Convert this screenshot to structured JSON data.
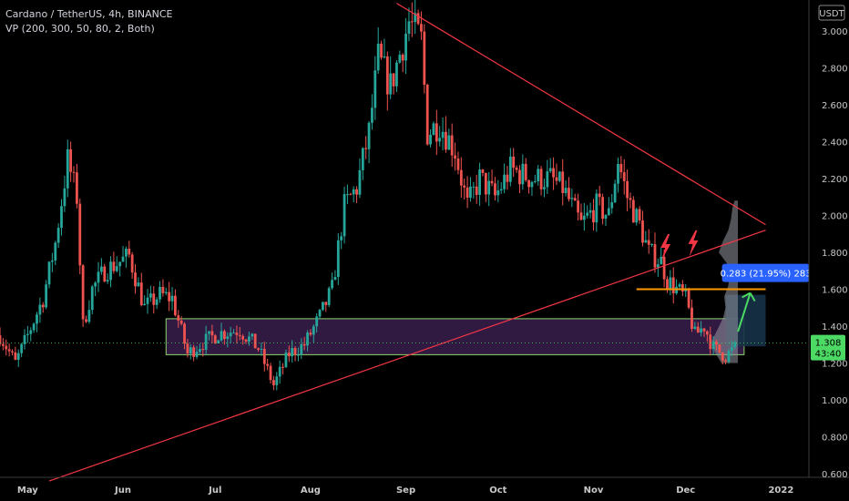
{
  "header": {
    "symbol_line": "Cardano / TetherUS, 4h, BINANCE",
    "indicator_line": "VP (200, 300, 50, 80, 2, Both)"
  },
  "currency_badge": "USDT",
  "colors": {
    "up": "#26a69a",
    "down": "#ef5350",
    "trendline": "#f23645",
    "zone_fill": "#3a1e4e",
    "zone_border": "#8bd46a",
    "orange_line": "#ff9800",
    "measure_box": "#163247",
    "measure_label": "#2962ff",
    "arrow": "#4cd964",
    "price_badge": "#4cd964",
    "volume_profile": "#9598a1"
  },
  "icons": [
    "lightning-bolt-icon",
    "lightning-bolt-icon"
  ],
  "chart_data": {
    "type": "candlestick",
    "timeframe": "4h",
    "title": "Cardano / TetherUS, 4h, BINANCE",
    "y_axis": {
      "unit": "USDT",
      "ticks": [
        "3.000",
        "2.800",
        "2.600",
        "2.400",
        "2.200",
        "2.000",
        "1.800",
        "1.600",
        "1.400",
        "1.200",
        "1.000",
        "0.800",
        "0.600"
      ],
      "range": [
        0.6,
        3.1
      ]
    },
    "x_axis": {
      "ticks": [
        "May",
        "Jun",
        "Jul",
        "Aug",
        "Sep",
        "Oct",
        "Nov",
        "Dec",
        "2022"
      ],
      "range": [
        "2021-04-22",
        "2021-12-31"
      ]
    },
    "current_price": "1.308",
    "countdown": "43:40",
    "price_path": [
      {
        "t": "2021-04-22",
        "p": 1.35
      },
      {
        "t": "2021-04-27",
        "p": 1.2
      },
      {
        "t": "2021-05-01",
        "p": 1.35
      },
      {
        "t": "2021-05-06",
        "p": 1.55
      },
      {
        "t": "2021-05-10",
        "p": 1.85
      },
      {
        "t": "2021-05-14",
        "p": 2.3
      },
      {
        "t": "2021-05-17",
        "p": 2.1
      },
      {
        "t": "2021-05-19",
        "p": 1.4
      },
      {
        "t": "2021-05-22",
        "p": 1.6
      },
      {
        "t": "2021-05-26",
        "p": 1.7
      },
      {
        "t": "2021-05-31",
        "p": 1.75
      },
      {
        "t": "2021-06-03",
        "p": 1.78
      },
      {
        "t": "2021-06-08",
        "p": 1.5
      },
      {
        "t": "2021-06-13",
        "p": 1.57
      },
      {
        "t": "2021-06-17",
        "p": 1.55
      },
      {
        "t": "2021-06-22",
        "p": 1.25
      },
      {
        "t": "2021-06-26",
        "p": 1.3
      },
      {
        "t": "2021-07-02",
        "p": 1.36
      },
      {
        "t": "2021-07-09",
        "p": 1.38
      },
      {
        "t": "2021-07-15",
        "p": 1.28
      },
      {
        "t": "2021-07-20",
        "p": 1.08
      },
      {
        "t": "2021-07-25",
        "p": 1.25
      },
      {
        "t": "2021-07-30",
        "p": 1.3
      },
      {
        "t": "2021-08-04",
        "p": 1.45
      },
      {
        "t": "2021-08-08",
        "p": 1.6
      },
      {
        "t": "2021-08-12",
        "p": 2.05
      },
      {
        "t": "2021-08-16",
        "p": 2.15
      },
      {
        "t": "2021-08-20",
        "p": 2.45
      },
      {
        "t": "2021-08-23",
        "p": 2.85
      },
      {
        "t": "2021-08-27",
        "p": 2.7
      },
      {
        "t": "2021-09-02",
        "p": 3.05
      },
      {
        "t": "2021-09-06",
        "p": 2.95
      },
      {
        "t": "2021-09-08",
        "p": 2.45
      },
      {
        "t": "2021-09-12",
        "p": 2.5
      },
      {
        "t": "2021-09-17",
        "p": 2.35
      },
      {
        "t": "2021-09-21",
        "p": 2.05
      },
      {
        "t": "2021-09-25",
        "p": 2.2
      },
      {
        "t": "2021-09-30",
        "p": 2.1
      },
      {
        "t": "2021-10-05",
        "p": 2.25
      },
      {
        "t": "2021-10-12",
        "p": 2.2
      },
      {
        "t": "2021-10-18",
        "p": 2.2
      },
      {
        "t": "2021-10-22",
        "p": 2.15
      },
      {
        "t": "2021-10-28",
        "p": 1.95
      },
      {
        "t": "2021-11-02",
        "p": 2.05
      },
      {
        "t": "2021-11-06",
        "p": 2.0
      },
      {
        "t": "2021-11-09",
        "p": 2.3
      },
      {
        "t": "2021-11-12",
        "p": 2.1
      },
      {
        "t": "2021-11-16",
        "p": 1.95
      },
      {
        "t": "2021-11-19",
        "p": 1.8
      },
      {
        "t": "2021-11-23",
        "p": 1.75
      },
      {
        "t": "2021-11-25",
        "p": 1.65
      },
      {
        "t": "2021-11-28",
        "p": 1.6
      },
      {
        "t": "2021-12-01",
        "p": 1.55
      },
      {
        "t": "2021-12-04",
        "p": 1.35
      },
      {
        "t": "2021-12-07",
        "p": 1.4
      },
      {
        "t": "2021-12-10",
        "p": 1.28
      },
      {
        "t": "2021-12-14",
        "p": 1.24
      },
      {
        "t": "2021-12-17",
        "p": 1.28
      }
    ],
    "drawings": {
      "upper_trendline": [
        {
          "t": "2021-08-29",
          "p": 3.15
        },
        {
          "t": "2021-12-27",
          "p": 1.95
        }
      ],
      "lower_trendline": [
        {
          "t": "2021-05-08",
          "p": 0.56
        },
        {
          "t": "2021-12-27",
          "p": 1.92
        }
      ],
      "support_zone": {
        "t0": "2021-06-15",
        "t1": "2021-12-20",
        "p_low": 1.245,
        "p_high": 1.44
      },
      "orange_level": {
        "t0": "2021-11-15",
        "t1": "2021-12-27",
        "p": 1.6
      },
      "measure_box": {
        "t0": "2021-12-14",
        "t1": "2021-12-27",
        "p_low": 1.29,
        "p_high": 1.57
      },
      "measure_label": "0.283 (21.95%) 283",
      "projection_arrow": [
        {
          "t": "2021-12-18",
          "p": 1.37
        },
        {
          "t": "2021-12-22",
          "p": 1.58
        }
      ],
      "lightning_marks": [
        {
          "t": "2021-11-24",
          "p": 1.82
        },
        {
          "t": "2021-12-03",
          "p": 1.84
        }
      ]
    },
    "volume_profile": {
      "y_range": [
        1.18,
        2.1
      ],
      "levels": [
        {
          "p": 1.2,
          "v": 0.6
        },
        {
          "p": 1.26,
          "v": 0.85
        },
        {
          "p": 1.32,
          "v": 0.95
        },
        {
          "p": 1.38,
          "v": 0.75
        },
        {
          "p": 1.44,
          "v": 0.55
        },
        {
          "p": 1.5,
          "v": 0.45
        },
        {
          "p": 1.56,
          "v": 0.5
        },
        {
          "p": 1.62,
          "v": 0.35
        },
        {
          "p": 1.68,
          "v": 0.3
        },
        {
          "p": 1.74,
          "v": 0.4
        },
        {
          "p": 1.8,
          "v": 0.7
        },
        {
          "p": 1.86,
          "v": 0.55
        },
        {
          "p": 1.92,
          "v": 0.35
        },
        {
          "p": 1.98,
          "v": 0.25
        },
        {
          "p": 2.04,
          "v": 0.2
        },
        {
          "p": 2.08,
          "v": 0.12
        }
      ]
    }
  }
}
